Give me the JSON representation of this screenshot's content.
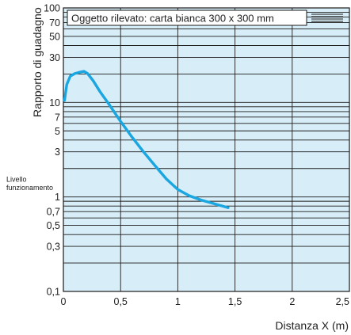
{
  "chart_data": {
    "type": "line",
    "title": "",
    "xlabel": "Distanza X (m)",
    "ylabel": "Rapporto di guadagno",
    "xlim": [
      0,
      2.5
    ],
    "ylim": [
      0.1,
      100
    ],
    "yscale": "log",
    "grid": true,
    "x_ticks": [
      {
        "v": 0,
        "label": "0"
      },
      {
        "v": 0.5,
        "label": "0,5"
      },
      {
        "v": 1,
        "label": "1"
      },
      {
        "v": 1.5,
        "label": "1,5"
      },
      {
        "v": 2,
        "label": "2"
      },
      {
        "v": 2.5,
        "label": "2,5"
      }
    ],
    "y_ticks": [
      {
        "v": 0.1,
        "label": "0,1"
      },
      {
        "v": 0.3,
        "label": "0,3"
      },
      {
        "v": 0.5,
        "label": "0,5"
      },
      {
        "v": 0.7,
        "label": "0,7"
      },
      {
        "v": 1,
        "label": "1"
      },
      {
        "v": 3,
        "label": "3"
      },
      {
        "v": 5,
        "label": "5"
      },
      {
        "v": 7,
        "label": "7"
      },
      {
        "v": 10,
        "label": "10"
      },
      {
        "v": 30,
        "label": "30"
      },
      {
        "v": 50,
        "label": "50"
      },
      {
        "v": 70,
        "label": "70"
      },
      {
        "v": 100,
        "label": "100"
      }
    ],
    "minor_y": [
      0.2,
      0.4,
      0.6,
      0.8,
      0.9,
      2,
      4,
      6,
      8,
      9,
      20,
      40,
      60,
      80,
      90
    ],
    "operating_level_label": "Livello funzionamento",
    "operating_level_value": 1,
    "legend_text": "Oggetto rilevato: carta bianca 300 x 300 mm",
    "series": [
      {
        "name": "Oggetto rilevato: carta bianca 300 x 300 mm",
        "color": "#1aa6e0",
        "x": [
          0.01,
          0.03,
          0.06,
          0.1,
          0.15,
          0.18,
          0.21,
          0.26,
          0.32,
          0.4,
          0.5,
          0.6,
          0.7,
          0.8,
          0.9,
          1.0,
          1.1,
          1.2,
          1.3,
          1.44
        ],
        "y": [
          10.5,
          15.5,
          19.0,
          20.2,
          21.0,
          21.3,
          20.3,
          17.0,
          13.0,
          9.5,
          6.3,
          4.3,
          3.0,
          2.15,
          1.55,
          1.2,
          1.03,
          0.93,
          0.86,
          0.77
        ]
      }
    ]
  },
  "colors": {
    "plot_background": "#d7edf7",
    "grid": "#1a1a1a",
    "line": "#1aa6e0"
  }
}
